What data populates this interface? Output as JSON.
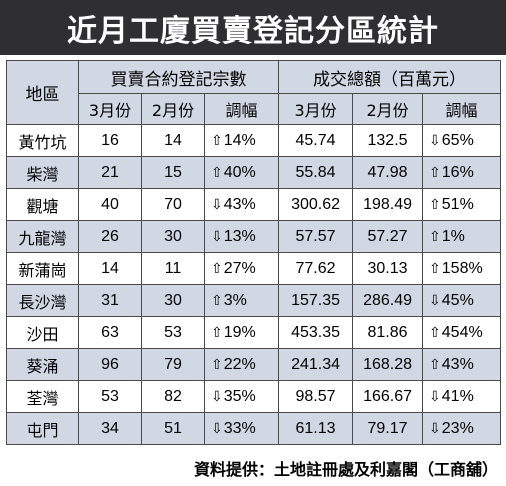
{
  "title": "近月工廈買賣登記分區統計",
  "table": {
    "district_header": "地區",
    "group_headers": {
      "transactions": "買賣合約登記宗數",
      "value": "成交總額（百萬元）"
    },
    "sub_headers": {
      "mar": "3月份",
      "feb": "2月份",
      "change": "調幅"
    },
    "rows": [
      {
        "district": "黃竹坑",
        "tx_mar": "16",
        "tx_feb": "14",
        "tx_dir": "up",
        "tx_chg": "14%",
        "val_mar": "45.74",
        "val_feb": "132.5",
        "val_dir": "down",
        "val_chg": "65%"
      },
      {
        "district": "柴灣",
        "tx_mar": "21",
        "tx_feb": "15",
        "tx_dir": "up",
        "tx_chg": "40%",
        "val_mar": "55.84",
        "val_feb": "47.98",
        "val_dir": "up",
        "val_chg": "16%"
      },
      {
        "district": "觀塘",
        "tx_mar": "40",
        "tx_feb": "70",
        "tx_dir": "down",
        "tx_chg": "43%",
        "val_mar": "300.62",
        "val_feb": "198.49",
        "val_dir": "up",
        "val_chg": "51%"
      },
      {
        "district": "九龍灣",
        "tx_mar": "26",
        "tx_feb": "30",
        "tx_dir": "down",
        "tx_chg": "13%",
        "val_mar": "57.57",
        "val_feb": "57.27",
        "val_dir": "up",
        "val_chg": "1%"
      },
      {
        "district": "新蒲崗",
        "tx_mar": "14",
        "tx_feb": "11",
        "tx_dir": "up",
        "tx_chg": "27%",
        "val_mar": "77.62",
        "val_feb": "30.13",
        "val_dir": "up",
        "val_chg": "158%"
      },
      {
        "district": "長沙灣",
        "tx_mar": "31",
        "tx_feb": "30",
        "tx_dir": "up",
        "tx_chg": "3%",
        "val_mar": "157.35",
        "val_feb": "286.49",
        "val_dir": "down",
        "val_chg": "45%"
      },
      {
        "district": "沙田",
        "tx_mar": "63",
        "tx_feb": "53",
        "tx_dir": "up",
        "tx_chg": "19%",
        "val_mar": "453.35",
        "val_feb": "81.86",
        "val_dir": "up",
        "val_chg": "454%"
      },
      {
        "district": "葵涌",
        "tx_mar": "96",
        "tx_feb": "79",
        "tx_dir": "up",
        "tx_chg": "22%",
        "val_mar": "241.34",
        "val_feb": "168.28",
        "val_dir": "up",
        "val_chg": "43%"
      },
      {
        "district": "荃灣",
        "tx_mar": "53",
        "tx_feb": "82",
        "tx_dir": "down",
        "tx_chg": "35%",
        "val_mar": "98.57",
        "val_feb": "166.67",
        "val_dir": "down",
        "val_chg": "41%"
      },
      {
        "district": "屯門",
        "tx_mar": "34",
        "tx_feb": "51",
        "tx_dir": "down",
        "tx_chg": "33%",
        "val_mar": "61.13",
        "val_feb": "79.17",
        "val_dir": "down",
        "val_chg": "23%"
      }
    ]
  },
  "arrows": {
    "up": "⇧",
    "down": "⇩"
  },
  "source": "資料提供：土地註冊處及利嘉閣（工商舖）",
  "colors": {
    "title_bg": "#2f2f31",
    "header_bg": "#d1d8e4",
    "stripe": "#d1d8e4"
  }
}
